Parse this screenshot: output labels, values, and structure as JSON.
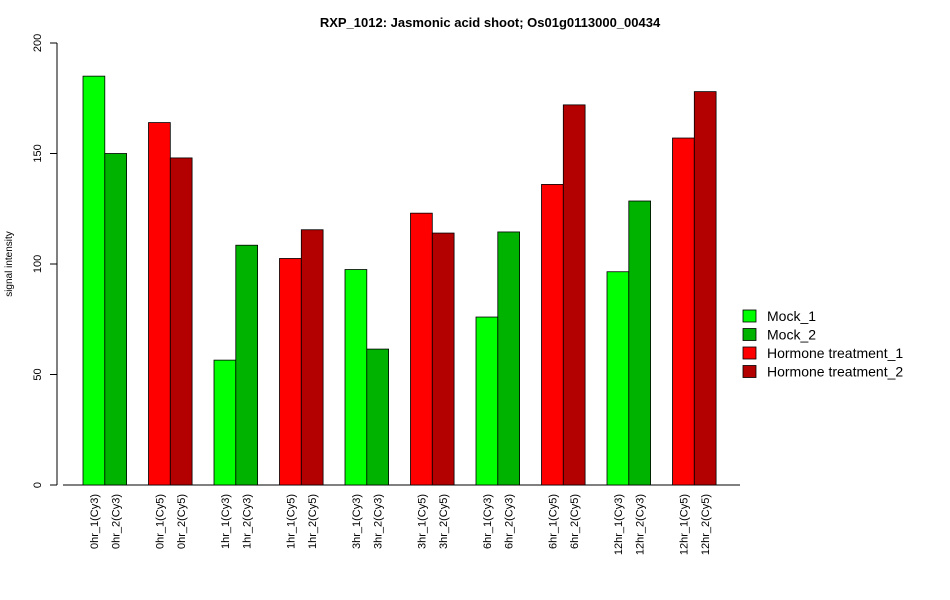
{
  "chart_data": {
    "type": "bar",
    "title": "RXP_1012: Jasmonic acid shoot; Os01g0113000_00434",
    "xlabel": "",
    "ylabel": "signal intensity",
    "ylim": [
      0,
      200
    ],
    "yticks": [
      0,
      50,
      100,
      150,
      200
    ],
    "grid": false,
    "legend_position": "right",
    "bars": [
      {
        "label": "0hr_1(Cy3)",
        "value": 185,
        "series": "Mock_1"
      },
      {
        "label": "0hr_2(Cy3)",
        "value": 150,
        "series": "Mock_2"
      },
      {
        "label": "0hr_1(Cy5)",
        "value": 164,
        "series": "Hormone treatment_1"
      },
      {
        "label": "0hr_2(Cy5)",
        "value": 148,
        "series": "Hormone treatment_2"
      },
      {
        "label": "1hr_1(Cy3)",
        "value": 56.5,
        "series": "Mock_1"
      },
      {
        "label": "1hr_2(Cy3)",
        "value": 108.5,
        "series": "Mock_2"
      },
      {
        "label": "1hr_1(Cy5)",
        "value": 102.5,
        "series": "Hormone treatment_1"
      },
      {
        "label": "1hr_2(Cy5)",
        "value": 115.5,
        "series": "Hormone treatment_2"
      },
      {
        "label": "3hr_1(Cy3)",
        "value": 97.5,
        "series": "Mock_1"
      },
      {
        "label": "3hr_2(Cy3)",
        "value": 61.5,
        "series": "Mock_2"
      },
      {
        "label": "3hr_1(Cy5)",
        "value": 123,
        "series": "Hormone treatment_1"
      },
      {
        "label": "3hr_2(Cy5)",
        "value": 114,
        "series": "Hormone treatment_2"
      },
      {
        "label": "6hr_1(Cy3)",
        "value": 76,
        "series": "Mock_1"
      },
      {
        "label": "6hr_2(Cy3)",
        "value": 114.5,
        "series": "Mock_2"
      },
      {
        "label": "6hr_1(Cy5)",
        "value": 136,
        "series": "Hormone treatment_1"
      },
      {
        "label": "6hr_2(Cy5)",
        "value": 172,
        "series": "Hormone treatment_2"
      },
      {
        "label": "12hr_1(Cy3)",
        "value": 96.5,
        "series": "Mock_1"
      },
      {
        "label": "12hr_2(Cy3)",
        "value": 128.5,
        "series": "Mock_2"
      },
      {
        "label": "12hr_1(Cy5)",
        "value": 157,
        "series": "Hormone treatment_1"
      },
      {
        "label": "12hr_2(Cy5)",
        "value": 178,
        "series": "Hormone treatment_2"
      }
    ],
    "series": [
      {
        "name": "Mock_1",
        "color": "#00ff00"
      },
      {
        "name": "Mock_2",
        "color": "#00b300"
      },
      {
        "name": "Hormone treatment_1",
        "color": "#ff0000"
      },
      {
        "name": "Hormone treatment_2",
        "color": "#b30000"
      }
    ]
  }
}
